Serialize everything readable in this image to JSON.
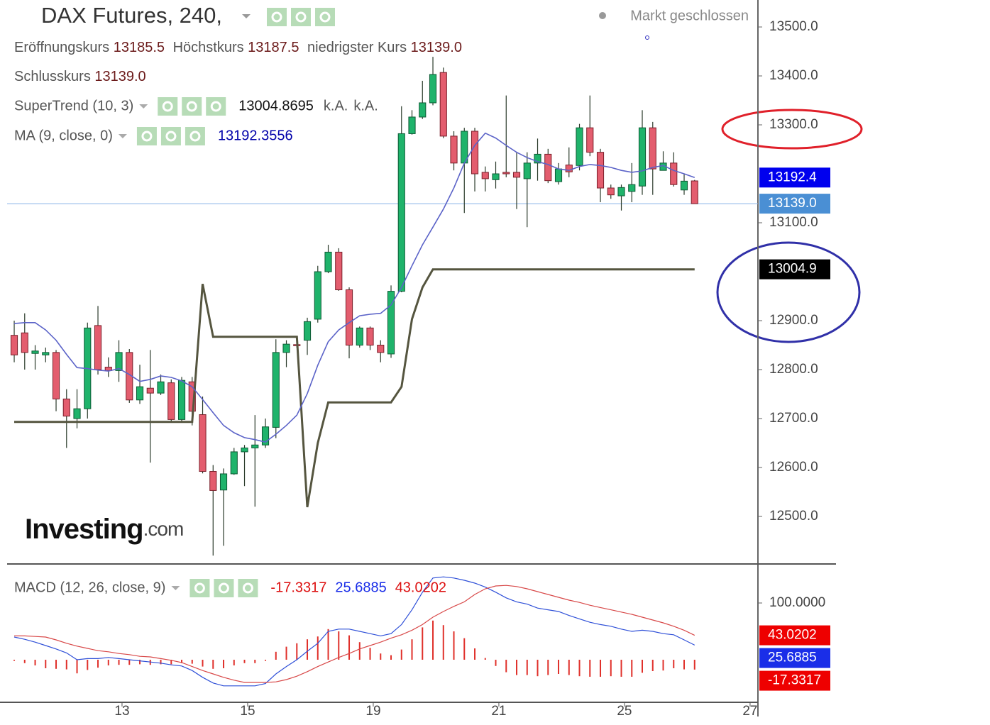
{
  "header": {
    "title": "DAX Futures, 240,",
    "status": "Markt geschlossen",
    "ohlc": [
      {
        "label": "Eröffnungskurs",
        "value": "13185.5"
      },
      {
        "label": "Höchstkurs",
        "value": "13187.5"
      },
      {
        "label": "niedrigster Kurs",
        "value": "13139.0"
      },
      {
        "label": "Schlusskurs",
        "value": "13139.0"
      }
    ]
  },
  "logo": {
    "brand": "Investing",
    "suffix": ".com"
  },
  "chart_data": [
    {
      "type": "candlestick",
      "up_color": "#1fb36b",
      "down_color": "#e35d6e",
      "open": [
        12870,
        12875,
        12833,
        12830,
        12835,
        12740,
        12700,
        12720,
        12890,
        12805,
        12798,
        12835,
        12738,
        12762,
        12752,
        12773,
        12698,
        12775,
        12708,
        12592,
        12554,
        12587,
        12632,
        12640,
        12646,
        12682,
        12835,
        12851,
        12860,
        12903,
        13000,
        13040,
        12963,
        12850,
        12885,
        12850,
        12832,
        12960,
        13282,
        13316,
        13345,
        13407,
        13277,
        13222,
        13287,
        13203,
        13188,
        13203,
        13203,
        13190,
        13222,
        13240,
        13184,
        13218,
        13217,
        13294,
        13244,
        13171,
        13155,
        13164,
        13175,
        13294,
        13207,
        13222,
        13167,
        13185.5
      ],
      "high": [
        12900,
        12915,
        12850,
        12845,
        12840,
        12760,
        12760,
        12896,
        12930,
        12825,
        12860,
        12842,
        12810,
        12840,
        12790,
        12780,
        12785,
        12785,
        12745,
        12605,
        12598,
        12640,
        12646,
        12707,
        12700,
        12862,
        12860,
        12855,
        12906,
        13012,
        13055,
        13048,
        12968,
        12888,
        12888,
        12860,
        12972,
        13338,
        13330,
        13390,
        13439,
        13417,
        13287,
        13294,
        13294,
        13215,
        13225,
        13360,
        13244,
        13244,
        13272,
        13251,
        13222,
        13254,
        13302,
        13360,
        13251,
        13178,
        13178,
        13222,
        13330,
        13306,
        13246,
        13244,
        13200,
        13187.5
      ],
      "low": [
        12815,
        12800,
        12800,
        12815,
        12715,
        12640,
        12680,
        12700,
        12790,
        12785,
        12775,
        12732,
        12730,
        12610,
        12748,
        12692,
        12692,
        12686,
        12588,
        12420,
        12440,
        12585,
        12562,
        12520,
        12640,
        12660,
        12805,
        12845,
        12830,
        12896,
        12997,
        12961,
        12823,
        12845,
        12840,
        12815,
        12824,
        12958,
        13280,
        13312,
        13340,
        13273,
        13207,
        13120,
        13164,
        13164,
        13170,
        13193,
        13128,
        13091,
        13186,
        13181,
        13178,
        13193,
        13207,
        13236,
        13142,
        13149,
        13125,
        13142,
        13157,
        13157,
        13207,
        13174,
        13157,
        13139
      ],
      "close": [
        12830,
        12835,
        12838,
        12835,
        12740,
        12705,
        12720,
        12885,
        12800,
        12798,
        12835,
        12738,
        12765,
        12752,
        12775,
        12698,
        12778,
        12715,
        12592,
        12553,
        12587,
        12632,
        12640,
        12646,
        12683,
        12835,
        12852,
        12849,
        12898,
        13000,
        13040,
        12963,
        12850,
        12885,
        12850,
        12835,
        12960,
        13282,
        13316,
        13345,
        13403,
        13277,
        13222,
        13287,
        13200,
        13190,
        13200,
        13200,
        13193,
        13222,
        13240,
        13186,
        13210,
        13204,
        13294,
        13244,
        13171,
        13157,
        13172,
        13178,
        13294,
        13210,
        13222,
        13178,
        13185,
        13139
      ],
      "close_label": "13139.0",
      "overlays": [
        {
          "name": "SuperTrend (10, 3)",
          "color": "#55553f",
          "width": 3,
          "extra": [
            "k.A.",
            "k.A."
          ],
          "tag_color": "#000000",
          "last_label": "13004.9",
          "values": [
            12693,
            12693,
            12693,
            12693,
            12693,
            12693,
            12693,
            12693,
            12693,
            12693,
            12693,
            12693,
            12693,
            12693,
            12693,
            12693,
            12693,
            12693,
            12975,
            12867,
            12867,
            12867,
            12867,
            12867,
            12867,
            12867,
            12867,
            12867,
            12519,
            12650,
            12733,
            12733,
            12733,
            12733,
            12733,
            12733,
            12733,
            12765,
            12903,
            12968,
            13004.8695,
            13004.8695,
            13004.8695,
            13004.8695,
            13004.8695,
            13004.8695,
            13004.8695,
            13004.8695,
            13004.8695,
            13004.8695,
            13004.8695,
            13004.8695,
            13004.8695,
            13004.8695,
            13004.8695,
            13004.8695,
            13004.8695,
            13004.8695,
            13004.8695,
            13004.8695,
            13004.8695,
            13004.8695,
            13004.8695,
            13004.8695,
            13004.8695,
            13004.8695
          ]
        },
        {
          "name": "MA (9, close, 0)",
          "color": "#5b63c8",
          "width": 1.6,
          "value_color": "#0000aa",
          "tag_color": "#0000ee",
          "last_label": "13192.4",
          "values": [
            12894,
            12896,
            12896,
            12881,
            12860,
            12831,
            12804,
            12802,
            12799,
            12797,
            12802,
            12790,
            12776,
            12780,
            12787,
            12784,
            12777,
            12765,
            12739,
            12712,
            12686,
            12671,
            12661,
            12657,
            12652,
            12668,
            12686,
            12707,
            12751,
            12809,
            12857,
            12881,
            12896,
            12910,
            12913,
            12915,
            12932,
            12968,
            13012,
            13055,
            13091,
            13128,
            13171,
            13222,
            13258,
            13283,
            13273,
            13258,
            13244,
            13233,
            13225,
            13219,
            13210,
            13207,
            13215,
            13219,
            13217,
            13213,
            13207,
            13203,
            13206,
            13213,
            13217,
            13207,
            13200,
            13192.3556
          ]
        }
      ],
      "ylim": [
        12402.9,
        13555.1
      ],
      "yticks": [
        {
          "value": 13500,
          "label": "13500.0"
        },
        {
          "value": 13400,
          "label": "13400.0"
        },
        {
          "value": 13300,
          "label": "13300.0"
        },
        {
          "value": 13100,
          "label": "13100.0"
        },
        {
          "value": 12900,
          "label": "12900.0"
        },
        {
          "value": 12800,
          "label": "12800.0"
        },
        {
          "value": 12700,
          "label": "12700.0"
        },
        {
          "value": 12600,
          "label": "12600.0"
        },
        {
          "value": 12500,
          "label": "12500.0"
        }
      ],
      "xlim": [
        -0.68,
        71.05
      ]
    },
    {
      "type": "macd",
      "name": "MACD (12, 26, close, 9)",
      "series": [
        {
          "kind": "histogram",
          "color": "#e0302a",
          "values": [
            -2,
            -6,
            -10,
            -15,
            -16,
            -17,
            -24,
            -18,
            -14,
            -10,
            -9,
            -9,
            -8,
            -9,
            -8,
            -8,
            -6,
            -7,
            -12,
            -16,
            -15,
            -10,
            -6,
            -6,
            -2,
            14,
            23,
            29,
            36,
            41,
            54,
            50,
            43,
            31,
            21,
            11,
            8,
            18,
            36,
            57,
            69,
            61,
            50,
            38,
            20,
            3,
            -11,
            -22,
            -27,
            -27,
            -29,
            -27,
            -25,
            -27,
            -29,
            -30,
            -30,
            -29,
            -30,
            -30,
            -23,
            -20,
            -19,
            -15,
            -17,
            -17.3317
          ]
        },
        {
          "kind": "line",
          "color": "#2f50d8",
          "values": [
            40,
            36,
            31,
            25,
            19,
            12,
            0,
            2,
            2,
            4,
            2,
            0,
            -2,
            -4,
            -6,
            -9,
            -11,
            -19,
            -31,
            -41,
            -46,
            -46,
            -46,
            -46,
            -42,
            -25,
            -12,
            0,
            15,
            29,
            50,
            54,
            54,
            50,
            46,
            42,
            46,
            62,
            88,
            119,
            144,
            146,
            144,
            140,
            135,
            128,
            119,
            109,
            102,
            98,
            91,
            88,
            85,
            78,
            72,
            66,
            62,
            59,
            54,
            50,
            52,
            50,
            46,
            44,
            35,
            25.6885
          ]
        },
        {
          "kind": "line",
          "color": "#d84848",
          "values": [
            42,
            42,
            41,
            40,
            35,
            29,
            24,
            20,
            16,
            14,
            11,
            9,
            6,
            5,
            2,
            -1,
            -5,
            -12,
            -19,
            -25,
            -31,
            -36,
            -40,
            -40,
            -40,
            -39,
            -35,
            -29,
            -21,
            -12,
            -4,
            4,
            11,
            19,
            25,
            31,
            38,
            44,
            52,
            62,
            75,
            85,
            94,
            102,
            115,
            125,
            130,
            131,
            129,
            125,
            120,
            115,
            110,
            105,
            101,
            96,
            92,
            88,
            84,
            80,
            75,
            70,
            65,
            59,
            52,
            43.0202
          ]
        }
      ],
      "ylim": [
        -68.75,
        168.75
      ],
      "yticks": [
        {
          "value": 100,
          "label": "100.0000"
        }
      ],
      "xlim": [
        -0.68,
        71.05
      ],
      "xticks": [
        {
          "value": 10.3,
          "label": "13"
        },
        {
          "value": 22.3,
          "label": "15"
        },
        {
          "value": 34.3,
          "label": "19"
        },
        {
          "value": 46.3,
          "label": "21"
        },
        {
          "value": 58.3,
          "label": "25"
        },
        {
          "value": 70.3,
          "label": "27"
        }
      ]
    }
  ]
}
